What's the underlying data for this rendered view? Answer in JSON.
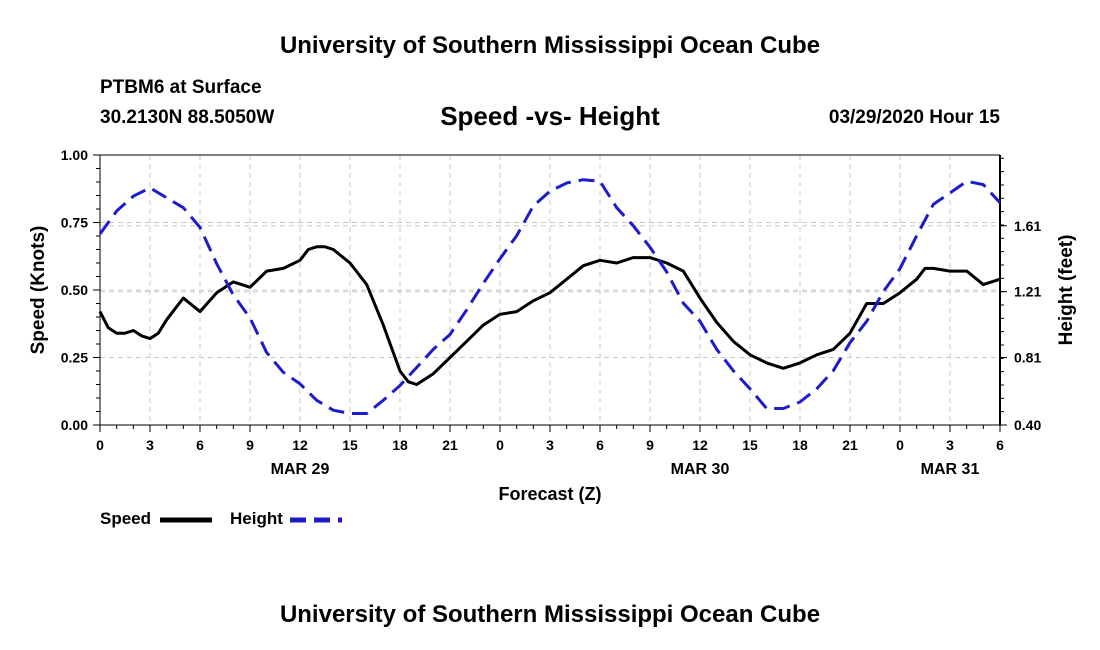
{
  "header": {
    "title": "University of Southern Mississippi Ocean Cube",
    "station": "PTBM6 at Surface",
    "coordinates": "30.2130N 88.5050W",
    "chart_title": "Speed -vs- Height",
    "datetime": "03/29/2020 Hour 15"
  },
  "footer": {
    "title": "University of Southern Mississippi Ocean Cube"
  },
  "colors": {
    "speed": "#000000",
    "height": "#1c1ccc",
    "grid": "#c8c8c8"
  },
  "chart_data": {
    "type": "line",
    "title": "Speed -vs- Height",
    "xlabel": "Forecast (Z)",
    "ylabel": "Speed (Knots)",
    "y2label": "Height (feet)",
    "x_range_hours": [
      0,
      54
    ],
    "ylim": [
      0,
      1
    ],
    "y2lim": [
      0.4,
      2.04
    ],
    "y_ticks": [
      "0.00",
      "0.25",
      "0.50",
      "0.75",
      "1.00"
    ],
    "y2_ticks": [
      "0.40",
      "0.81",
      "1.21",
      "1.61"
    ],
    "x_ticks": [
      "0",
      "3",
      "6",
      "9",
      "12",
      "15",
      "18",
      "21",
      "0",
      "3",
      "6",
      "9",
      "12",
      "15",
      "18",
      "21",
      "0",
      "3",
      "6"
    ],
    "date_labels": [
      {
        "label": "MAR 29",
        "hour": 12
      },
      {
        "label": "MAR 30",
        "hour": 36
      },
      {
        "label": "MAR 31",
        "hour": 51
      }
    ],
    "grid": true,
    "legend_position": "bottom-left",
    "series": [
      {
        "name": "Speed",
        "axis": "left",
        "style": "solid",
        "x": [
          0,
          0.5,
          1,
          1.5,
          2,
          2.5,
          3,
          3.5,
          4,
          5,
          6,
          7,
          8,
          8.5,
          9,
          10,
          11,
          12,
          12.5,
          13,
          13.5,
          14,
          15,
          16,
          17,
          18,
          18.5,
          19,
          19.5,
          20,
          21,
          22,
          23,
          24,
          25,
          26,
          27,
          28,
          29,
          30,
          31,
          32,
          33,
          34,
          35,
          36,
          37,
          38,
          39,
          40,
          41,
          42,
          43,
          44,
          45,
          46,
          47,
          48,
          49,
          49.5,
          50,
          51,
          52,
          53,
          54
        ],
        "values": [
          0.42,
          0.36,
          0.34,
          0.34,
          0.35,
          0.33,
          0.32,
          0.34,
          0.39,
          0.47,
          0.42,
          0.49,
          0.53,
          0.52,
          0.51,
          0.57,
          0.58,
          0.61,
          0.65,
          0.66,
          0.66,
          0.65,
          0.6,
          0.52,
          0.37,
          0.2,
          0.16,
          0.15,
          0.17,
          0.19,
          0.25,
          0.31,
          0.37,
          0.41,
          0.42,
          0.46,
          0.49,
          0.54,
          0.59,
          0.61,
          0.6,
          0.62,
          0.62,
          0.6,
          0.57,
          0.47,
          0.38,
          0.31,
          0.26,
          0.23,
          0.21,
          0.23,
          0.26,
          0.28,
          0.34,
          0.45,
          0.45,
          0.49,
          0.54,
          0.58,
          0.58,
          0.57,
          0.57,
          0.52,
          0.54
        ]
      },
      {
        "name": "Height",
        "axis": "right",
        "style": "dashed",
        "x": [
          0,
          1,
          2,
          3,
          4,
          5,
          6,
          7,
          8,
          9,
          10,
          11,
          12,
          13,
          14,
          15,
          16,
          17,
          18,
          19,
          20,
          21,
          22,
          23,
          24,
          25,
          26,
          27,
          28,
          29,
          30,
          31,
          32,
          33,
          34,
          35,
          36,
          37,
          38,
          39,
          40,
          41,
          42,
          43,
          44,
          45,
          46,
          47,
          48,
          49,
          50,
          51,
          52,
          53,
          54
        ],
        "values": [
          1.56,
          1.7,
          1.79,
          1.84,
          1.78,
          1.72,
          1.6,
          1.38,
          1.19,
          1.05,
          0.84,
          0.72,
          0.65,
          0.55,
          0.49,
          0.47,
          0.47,
          0.55,
          0.64,
          0.75,
          0.86,
          0.95,
          1.1,
          1.26,
          1.41,
          1.55,
          1.73,
          1.82,
          1.87,
          1.89,
          1.88,
          1.72,
          1.61,
          1.48,
          1.33,
          1.14,
          1.03,
          0.86,
          0.73,
          0.62,
          0.5,
          0.5,
          0.54,
          0.62,
          0.73,
          0.9,
          1.03,
          1.21,
          1.35,
          1.55,
          1.74,
          1.81,
          1.88,
          1.86,
          1.75
        ]
      }
    ]
  }
}
